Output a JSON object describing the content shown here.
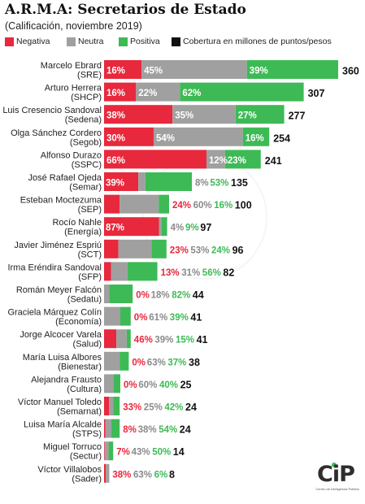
{
  "header": {
    "title": "A.R.M.A: Secretarios de Estado",
    "subtitle": "(Calificación, noviembre 2019)"
  },
  "legend": [
    {
      "label": "Negativa",
      "color": "#e8283c"
    },
    {
      "label": "Neutra",
      "color": "#a0a0a0"
    },
    {
      "label": "Positiva",
      "color": "#3dba55"
    },
    {
      "label": "Cobertura en millones de puntos/pesos",
      "color": "#111111"
    }
  ],
  "logo": {
    "brand": "CiP",
    "tagline": "Centro de Inteligencia Política"
  },
  "chart_data": {
    "type": "bar",
    "stacked": true,
    "orientation": "horizontal",
    "title": "A.R.M.A: Secretarios de Estado",
    "subtitle": "(Calificación, noviembre 2019)",
    "units": "%",
    "total_label": "Cobertura en millones de puntos/pesos",
    "colors": {
      "neg": "#e8283c",
      "neu": "#a0a0a0",
      "pos": "#3dba55"
    },
    "rows": [
      {
        "name": "Marcelo Ebrard",
        "dept": "(SRE)",
        "neg": 16,
        "neu": 45,
        "pos": 39,
        "total": 360
      },
      {
        "name": "Arturo Herrera",
        "dept": "(SHCP)",
        "neg": 16,
        "neu": 22,
        "pos": 62,
        "total": 307
      },
      {
        "name": "Luis Cresencio Sandoval",
        "dept": "(Sedena)",
        "neg": 38,
        "neu": 35,
        "pos": 27,
        "total": 277
      },
      {
        "name": "Olga Sánchez Cordero",
        "dept": "(Segob)",
        "neg": 30,
        "neu": 54,
        "pos": 16,
        "total": 254
      },
      {
        "name": "Alfonso Durazo",
        "dept": "(SSPC)",
        "neg": 66,
        "neu": 12,
        "pos": 23,
        "total": 241
      },
      {
        "name": "José Rafael Ojeda",
        "dept": "(Semar)",
        "neg": 39,
        "neu": 8,
        "pos": 53,
        "total": 135
      },
      {
        "name": "Esteban Moctezuma",
        "dept": "(SEP)",
        "neg": 24,
        "neu": 60,
        "pos": 16,
        "total": 100
      },
      {
        "name": "Rocío Nahle",
        "dept": "(Energía)",
        "neg": 87,
        "neu": 4,
        "pos": 9,
        "total": 97
      },
      {
        "name": "Javier Jiménez Espriú",
        "dept": "(SCT)",
        "neg": 23,
        "neu": 53,
        "pos": 24,
        "total": 96
      },
      {
        "name": "Irma Eréndira Sandoval",
        "dept": "(SFP)",
        "neg": 13,
        "neu": 31,
        "pos": 56,
        "total": 82
      },
      {
        "name": "Román Meyer Falcón",
        "dept": "(Sedatu)",
        "neg": 0,
        "neu": 18,
        "pos": 82,
        "total": 44
      },
      {
        "name": "Graciela Márquez Colín",
        "dept": "(Economía)",
        "neg": 0,
        "neu": 61,
        "pos": 39,
        "total": 41
      },
      {
        "name": "Jorge Alcocer Varela",
        "dept": "(Salud)",
        "neg": 46,
        "neu": 39,
        "pos": 15,
        "total": 41
      },
      {
        "name": "María Luisa Albores",
        "dept": "(Bienestar)",
        "neg": 0,
        "neu": 63,
        "pos": 37,
        "total": 38
      },
      {
        "name": "Alejandra Frausto",
        "dept": "(Cultura)",
        "neg": 0,
        "neu": 60,
        "pos": 40,
        "total": 25
      },
      {
        "name": "Víctor Manuel Toledo",
        "dept": "(Semarnat)",
        "neg": 33,
        "neu": 25,
        "pos": 42,
        "total": 24
      },
      {
        "name": "Luisa María Alcalde",
        "dept": "(STPS)",
        "neg": 8,
        "neu": 38,
        "pos": 54,
        "total": 24
      },
      {
        "name": "Miguel Torruco",
        "dept": "(Sectur)",
        "neg": 7,
        "neu": 43,
        "pos": 50,
        "total": 14
      },
      {
        "name": "Víctor Villalobos",
        "dept": "(Sader)",
        "neg": 38,
        "neu": 63,
        "pos": 6,
        "total": 8
      }
    ]
  }
}
